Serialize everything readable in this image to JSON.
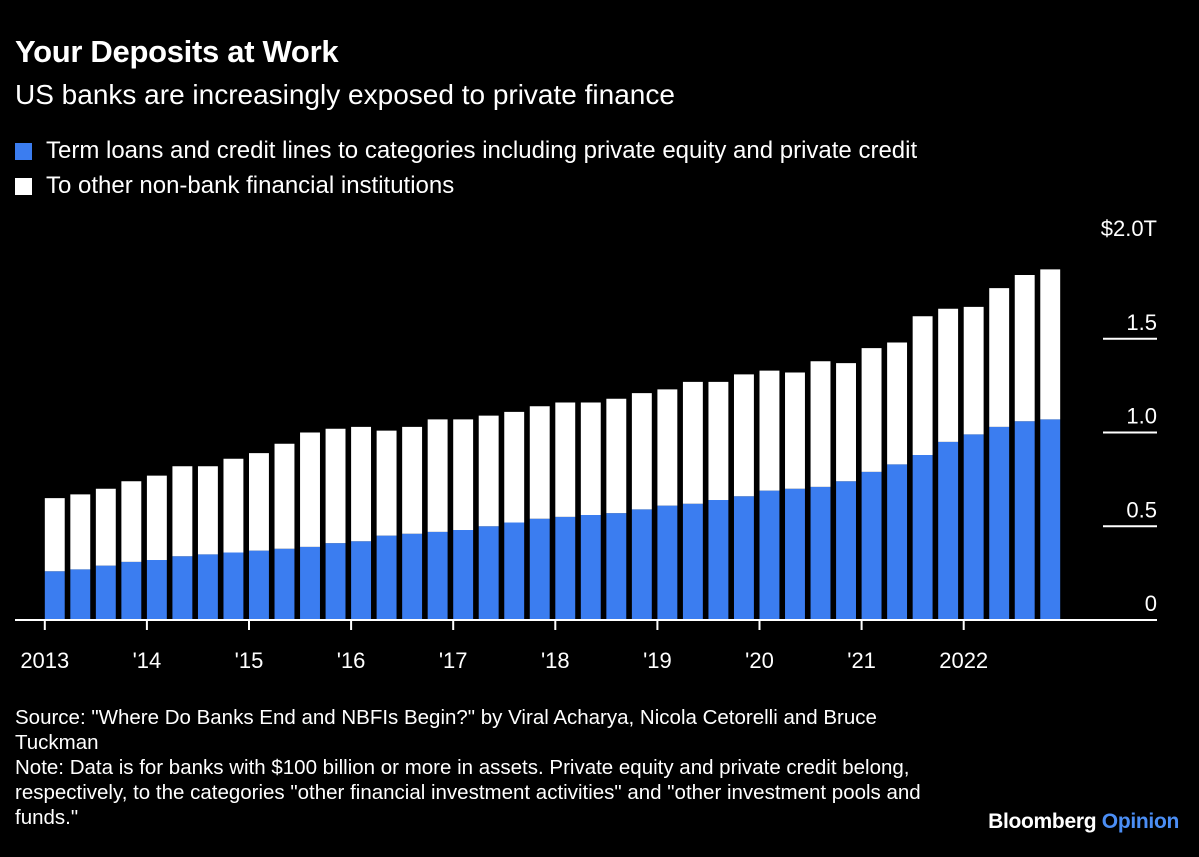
{
  "title": "Your Deposits at Work",
  "subtitle": "US banks are increasingly exposed to private finance",
  "footnote": {
    "source": "Source: \"Where Do Banks End and NBFIs Begin?\" by Viral Acharya, Nicola Cetorelli and Bruce Tuckman",
    "note": "Note: Data is for banks with $100 billion or more in assets. Private equity and private credit belong, respectively, to the categories \"other financial investment activities\" and \"other investment pools and funds.\""
  },
  "brand": {
    "name": "Bloomberg",
    "product": "Opinion"
  },
  "colors": {
    "background": "#000000",
    "series_blue": "#3b7df0",
    "series_white": "#ffffff",
    "brand_opinion": "#4b8ef5"
  },
  "chart_data": {
    "type": "bar",
    "stacked": true,
    "y_unit": "trillion USD",
    "ylim": [
      0,
      2.0
    ],
    "y_ticks": [
      {
        "value": 0,
        "label": "0"
      },
      {
        "value": 0.5,
        "label": "0.5"
      },
      {
        "value": 1.0,
        "label": "1.0"
      },
      {
        "value": 1.5,
        "label": "1.5"
      },
      {
        "value": 2.0,
        "label": "$2.0T"
      }
    ],
    "x_ticks": [
      {
        "index": 0,
        "label": "2013"
      },
      {
        "index": 4,
        "label": "'14"
      },
      {
        "index": 8,
        "label": "'15"
      },
      {
        "index": 12,
        "label": "'16"
      },
      {
        "index": 16,
        "label": "'17"
      },
      {
        "index": 20,
        "label": "'18"
      },
      {
        "index": 24,
        "label": "'19"
      },
      {
        "index": 28,
        "label": "'20"
      },
      {
        "index": 32,
        "label": "'21"
      },
      {
        "index": 36,
        "label": "2022"
      }
    ],
    "grid": false,
    "legend_position": "top-left",
    "series": [
      {
        "name": "Term loans and credit lines to categories including private equity and private credit",
        "color": "#3b7df0",
        "values": [
          0.26,
          0.27,
          0.29,
          0.31,
          0.32,
          0.34,
          0.35,
          0.36,
          0.37,
          0.38,
          0.39,
          0.41,
          0.42,
          0.45,
          0.46,
          0.47,
          0.48,
          0.5,
          0.52,
          0.54,
          0.55,
          0.56,
          0.57,
          0.59,
          0.61,
          0.62,
          0.64,
          0.66,
          0.69,
          0.7,
          0.71,
          0.74,
          0.79,
          0.83,
          0.88,
          0.95,
          0.99,
          1.03,
          1.06,
          1.07
        ]
      },
      {
        "name": "To other non-bank financial institutions",
        "color": "#ffffff",
        "values": [
          0.39,
          0.4,
          0.41,
          0.43,
          0.45,
          0.48,
          0.47,
          0.5,
          0.52,
          0.56,
          0.61,
          0.61,
          0.61,
          0.56,
          0.57,
          0.6,
          0.59,
          0.59,
          0.59,
          0.6,
          0.61,
          0.6,
          0.61,
          0.62,
          0.62,
          0.65,
          0.63,
          0.65,
          0.64,
          0.62,
          0.67,
          0.63,
          0.66,
          0.65,
          0.74,
          0.71,
          0.68,
          0.74,
          0.78,
          0.8
        ]
      }
    ]
  }
}
